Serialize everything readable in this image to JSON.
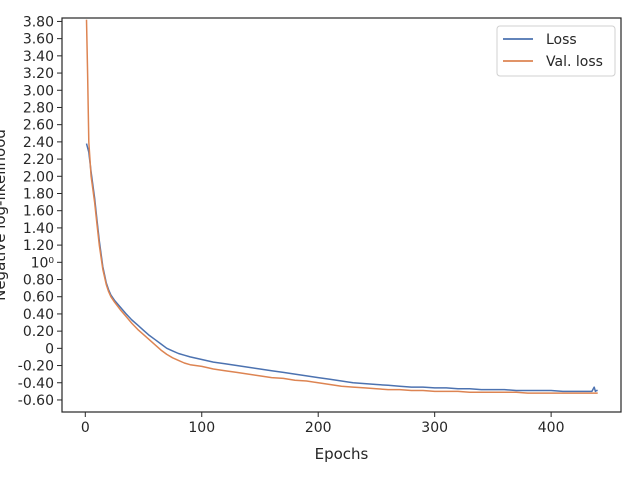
{
  "chart_data": {
    "type": "line",
    "title": "",
    "xlabel": "Epochs",
    "ylabel": "Negative log-likelihood",
    "xlim": [
      -20,
      460
    ],
    "ylim": [
      -0.74,
      3.84
    ],
    "x_ticks": [
      {
        "value": 0,
        "label": "0"
      },
      {
        "value": 100,
        "label": "100"
      },
      {
        "value": 200,
        "label": "200"
      },
      {
        "value": 300,
        "label": "300"
      },
      {
        "value": 400,
        "label": "400"
      }
    ],
    "y_ticks": [
      {
        "value": -0.6,
        "label": "-0.60"
      },
      {
        "value": -0.4,
        "label": "-0.40"
      },
      {
        "value": -0.2,
        "label": "-0.20"
      },
      {
        "value": 0.0,
        "label": "0"
      },
      {
        "value": 0.2,
        "label": "0.20"
      },
      {
        "value": 0.4,
        "label": "0.40"
      },
      {
        "value": 0.6,
        "label": "0.60"
      },
      {
        "value": 0.8,
        "label": "0.80"
      },
      {
        "value": 1.0,
        "label": "10⁰"
      },
      {
        "value": 1.2,
        "label": "1.20"
      },
      {
        "value": 1.4,
        "label": "1.40"
      },
      {
        "value": 1.6,
        "label": "1.60"
      },
      {
        "value": 1.8,
        "label": "1.80"
      },
      {
        "value": 2.0,
        "label": "2.00"
      },
      {
        "value": 2.2,
        "label": "2.20"
      },
      {
        "value": 2.4,
        "label": "2.40"
      },
      {
        "value": 2.6,
        "label": "2.60"
      },
      {
        "value": 2.8,
        "label": "2.80"
      },
      {
        "value": 3.0,
        "label": "3.00"
      },
      {
        "value": 3.2,
        "label": "3.20"
      },
      {
        "value": 3.4,
        "label": "3.40"
      },
      {
        "value": 3.6,
        "label": "3.60"
      },
      {
        "value": 3.8,
        "label": "3.80"
      }
    ],
    "grid": false,
    "legend": "top-right",
    "series": [
      {
        "name": "Loss",
        "color": "#4c72b0",
        "x": [
          1,
          3,
          5,
          8,
          10,
          12,
          15,
          18,
          20,
          22,
          25,
          30,
          35,
          40,
          45,
          50,
          55,
          60,
          65,
          70,
          75,
          80,
          85,
          90,
          100,
          110,
          120,
          130,
          140,
          150,
          160,
          170,
          180,
          190,
          200,
          210,
          220,
          230,
          240,
          250,
          260,
          270,
          280,
          290,
          300,
          310,
          320,
          330,
          340,
          350,
          360,
          370,
          380,
          390,
          400,
          410,
          420,
          430,
          435,
          437,
          438,
          439,
          440
        ],
        "y": [
          2.38,
          2.28,
          2.05,
          1.75,
          1.5,
          1.25,
          0.95,
          0.76,
          0.68,
          0.62,
          0.56,
          0.48,
          0.4,
          0.33,
          0.27,
          0.21,
          0.15,
          0.1,
          0.05,
          0.0,
          -0.03,
          -0.06,
          -0.08,
          -0.1,
          -0.13,
          -0.16,
          -0.18,
          -0.2,
          -0.22,
          -0.24,
          -0.26,
          -0.28,
          -0.3,
          -0.32,
          -0.34,
          -0.36,
          -0.38,
          -0.4,
          -0.41,
          -0.42,
          -0.43,
          -0.44,
          -0.45,
          -0.45,
          -0.46,
          -0.46,
          -0.47,
          -0.47,
          -0.48,
          -0.48,
          -0.48,
          -0.49,
          -0.49,
          -0.49,
          -0.49,
          -0.5,
          -0.5,
          -0.5,
          -0.5,
          -0.45,
          -0.5,
          -0.49,
          -0.49
        ]
      },
      {
        "name": "Val. loss",
        "color": "#dd8452",
        "x": [
          1,
          2,
          3,
          5,
          8,
          10,
          12,
          15,
          18,
          20,
          22,
          25,
          30,
          35,
          40,
          45,
          50,
          55,
          60,
          65,
          70,
          75,
          80,
          85,
          90,
          100,
          110,
          120,
          130,
          140,
          150,
          160,
          170,
          180,
          190,
          200,
          210,
          220,
          230,
          240,
          250,
          260,
          270,
          280,
          290,
          300,
          310,
          320,
          330,
          340,
          350,
          360,
          370,
          380,
          390,
          400,
          410,
          420,
          430,
          440
        ],
        "y": [
          3.82,
          3.2,
          2.4,
          2.0,
          1.7,
          1.45,
          1.2,
          0.92,
          0.74,
          0.66,
          0.6,
          0.54,
          0.45,
          0.37,
          0.29,
          0.22,
          0.16,
          0.1,
          0.04,
          -0.02,
          -0.07,
          -0.11,
          -0.14,
          -0.17,
          -0.19,
          -0.21,
          -0.24,
          -0.26,
          -0.28,
          -0.3,
          -0.32,
          -0.34,
          -0.35,
          -0.37,
          -0.38,
          -0.4,
          -0.42,
          -0.44,
          -0.45,
          -0.46,
          -0.47,
          -0.48,
          -0.48,
          -0.49,
          -0.49,
          -0.5,
          -0.5,
          -0.5,
          -0.51,
          -0.51,
          -0.51,
          -0.51,
          -0.51,
          -0.52,
          -0.52,
          -0.52,
          -0.52,
          -0.52,
          -0.52,
          -0.52
        ]
      }
    ]
  }
}
